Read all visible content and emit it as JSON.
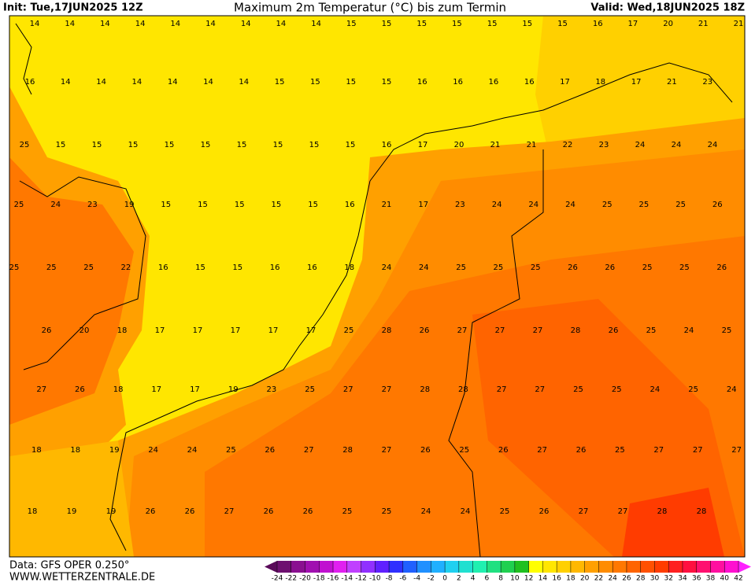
{
  "header": {
    "init": "Init: Tue,17JUN2025 12Z",
    "title": "Maximum 2m Temperatur (°C) bis zum Termin",
    "valid": "Valid: Wed,18JUN2025 18Z"
  },
  "map": {
    "rows": [
      [
        14,
        14,
        14,
        14,
        14,
        14,
        14,
        14,
        14,
        15,
        15,
        15,
        15,
        15,
        15,
        15,
        16,
        17,
        20,
        21,
        21
      ],
      [
        16,
        14,
        14,
        14,
        14,
        14,
        14,
        15,
        15,
        15,
        15,
        16,
        16,
        16,
        16,
        17,
        18,
        17,
        21,
        23,
        null
      ],
      [
        25,
        15,
        15,
        15,
        15,
        15,
        15,
        15,
        15,
        15,
        16,
        17,
        20,
        21,
        21,
        22,
        23,
        24,
        24,
        24,
        null
      ],
      [
        25,
        24,
        23,
        19,
        15,
        15,
        15,
        15,
        15,
        16,
        21,
        17,
        23,
        24,
        24,
        24,
        25,
        25,
        25,
        26
      ],
      [
        25,
        25,
        25,
        22,
        16,
        15,
        15,
        16,
        16,
        18,
        24,
        24,
        25,
        25,
        25,
        26,
        26,
        25,
        25,
        26
      ],
      [
        null,
        26,
        20,
        18,
        17,
        17,
        17,
        17,
        17,
        25,
        28,
        26,
        27,
        27,
        27,
        28,
        26,
        25,
        24,
        25
      ],
      [
        27,
        26,
        18,
        17,
        17,
        19,
        23,
        25,
        27,
        27,
        28,
        28,
        27,
        27,
        25,
        25,
        24,
        25,
        24
      ],
      [
        18,
        18,
        19,
        24,
        24,
        25,
        26,
        27,
        28,
        27,
        26,
        25,
        26,
        27,
        26,
        25,
        27,
        27,
        27
      ],
      [
        18,
        19,
        19,
        26,
        26,
        27,
        26,
        26,
        25,
        25,
        24,
        24,
        25,
        26,
        27,
        27,
        28,
        28,
        null
      ]
    ]
  },
  "colorbar": {
    "levels": [
      -24,
      -22,
      -20,
      -18,
      -16,
      -14,
      -12,
      -10,
      -8,
      -6,
      -4,
      -2,
      0,
      2,
      4,
      6,
      8,
      10,
      12,
      14,
      16,
      18,
      20,
      22,
      24,
      26,
      28,
      30,
      32,
      34,
      36,
      38,
      40,
      42
    ],
    "colors": [
      "#5a0a5a",
      "#6e1070",
      "#8a1090",
      "#a010b0",
      "#c010d0",
      "#e020f0",
      "#c040ff",
      "#9030ff",
      "#6020ff",
      "#3030ff",
      "#2060ff",
      "#2090ff",
      "#20b0ff",
      "#20d0f0",
      "#20e0d0",
      "#20f0b0",
      "#20e080",
      "#20d050",
      "#20c020",
      "#ffff00",
      "#ffe600",
      "#ffd000",
      "#ffb800",
      "#ffa000",
      "#ff8c00",
      "#ff7800",
      "#ff6400",
      "#ff5000",
      "#ff3c00",
      "#ff2020",
      "#ff1040",
      "#ff1070",
      "#ff10a0",
      "#ff10d0",
      "#ff20ff"
    ]
  },
  "footer": {
    "data": "Data: GFS OPER 0.250°",
    "source": "WWW.WETTERZENTRALE.DE"
  }
}
